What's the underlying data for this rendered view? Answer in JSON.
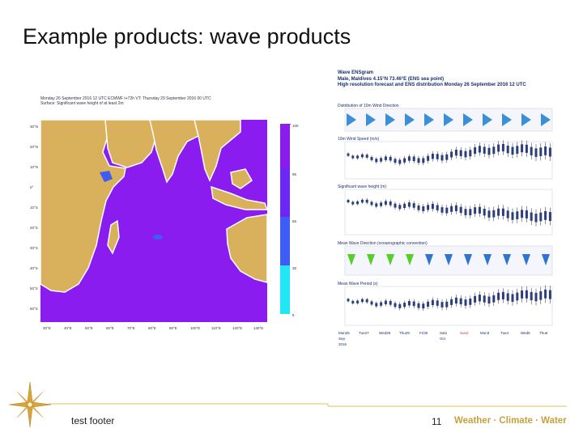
{
  "slide": {
    "title": "Example products: wave products",
    "footer_text": "test footer",
    "page_number": "11",
    "brand_text": "Weather · Climate · Water"
  },
  "map": {
    "header_line1": "Monday 26 September 2016 12 UTC  ECMWF t+72h  VT: Thursday 29 September 2016 00 UTC",
    "header_line2": "Surface: Significant wave height of at least 2m",
    "legend_ticks": [
      "100",
      "95",
      "65",
      "35",
      "5"
    ],
    "lat_labels": [
      "30°N",
      "20°N",
      "10°N",
      "0°",
      "10°S",
      "20°S",
      "30°S",
      "40°S",
      "50°S",
      "60°S"
    ],
    "lon_labels": [
      "30°E",
      "40°E",
      "50°E",
      "60°E",
      "70°E",
      "80°E",
      "90°E",
      "100°E",
      "110°E",
      "120°E",
      "130°E"
    ],
    "colors": {
      "land": "#d9b05c",
      "ocean": "#8a1cf0",
      "coast": "#ffffff",
      "low": "#3f5cf5",
      "cyan": "#20e6f5"
    }
  },
  "ensgram": {
    "title": "Wave ENSgram",
    "location": "Male, Maldives 4.15°N 73.46°E (ENS sea point)",
    "subtitle": "High resolution forecast and ENS distribution Monday 26 September 2016 12 UTC",
    "panels": [
      "Distribution of 10m Wind Direction",
      "10m Wind Speed (m/s)",
      "Significant wave height (m)",
      "Mean Wave Direction (oceanographic convention)",
      "Mean Wave Period (s)"
    ],
    "x_labels": [
      "Mon26",
      "Tue27",
      "Wed28",
      "Thu29",
      "Fri30",
      "Sat1",
      "Sun2",
      "Mon3",
      "Tue4",
      "Wed5",
      "Thu6"
    ],
    "x_sub": [
      "Sep",
      "2016",
      "Oct"
    ]
  }
}
